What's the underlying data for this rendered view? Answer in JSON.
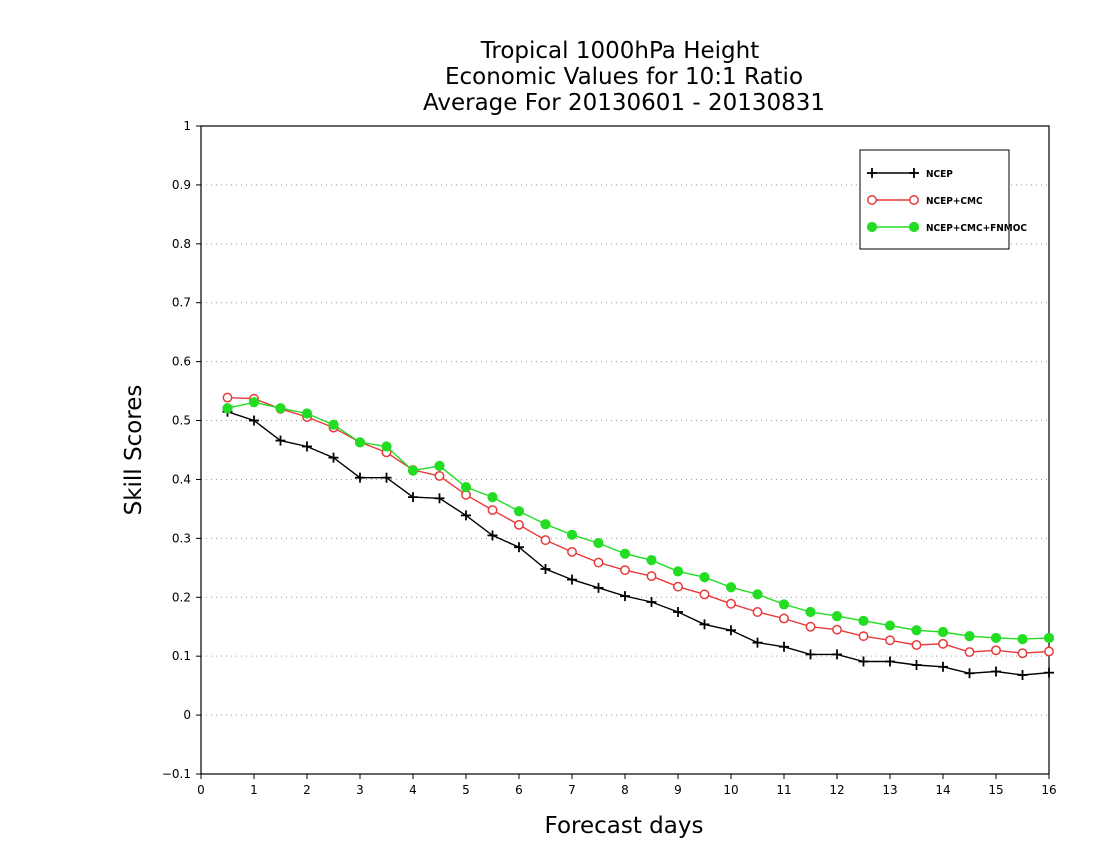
{
  "chart_data": {
    "type": "line",
    "title": [
      "Tropical 1000hPa Height",
      "Economic Values for 10:1 Ratio",
      "Average For 20130601 - 20130831"
    ],
    "xlabel": "Forecast days",
    "ylabel": "Skill Scores",
    "xlim": [
      0,
      16
    ],
    "ylim": [
      -0.1,
      1
    ],
    "xticks": [
      0,
      1,
      2,
      3,
      4,
      5,
      6,
      7,
      8,
      9,
      10,
      11,
      12,
      13,
      14,
      15,
      16
    ],
    "yticks": [
      -0.1,
      0,
      0.1,
      0.2,
      0.3,
      0.4,
      0.5,
      0.6,
      0.7,
      0.8,
      0.9,
      1
    ],
    "ytick_labels": [
      "−0.1",
      "0",
      "0.1",
      "0.2",
      "0.3",
      "0.4",
      "0.5",
      "0.6",
      "0.7",
      "0.8",
      "0.9",
      "1"
    ],
    "grid": "horizontal dotted",
    "legend_position": "top-right",
    "x": [
      0.5,
      1,
      1.5,
      2,
      2.5,
      3,
      3.5,
      4,
      4.5,
      5,
      5.5,
      6,
      6.5,
      7,
      7.5,
      8,
      8.5,
      9,
      9.5,
      10,
      10.5,
      11,
      11.5,
      12,
      12.5,
      13,
      13.5,
      14,
      14.5,
      15,
      15.5,
      16
    ],
    "series": [
      {
        "name": "NCEP",
        "color": "#000000",
        "marker": "plus",
        "values": [
          0.515,
          0.5,
          0.466,
          0.456,
          0.437,
          0.403,
          0.403,
          0.37,
          0.368,
          0.339,
          0.305,
          0.285,
          0.248,
          0.23,
          0.216,
          0.202,
          0.192,
          0.175,
          0.154,
          0.144,
          0.123,
          0.116,
          0.103,
          0.103,
          0.091,
          0.091,
          0.085,
          0.082,
          0.071,
          0.074,
          0.068,
          0.072
        ]
      },
      {
        "name": "NCEP+CMC",
        "color": "#e83a3a",
        "marker": "open-circle",
        "values": [
          0.539,
          0.537,
          0.52,
          0.506,
          0.488,
          0.463,
          0.446,
          0.416,
          0.406,
          0.374,
          0.348,
          0.323,
          0.297,
          0.277,
          0.259,
          0.246,
          0.236,
          0.218,
          0.205,
          0.189,
          0.175,
          0.164,
          0.15,
          0.145,
          0.134,
          0.127,
          0.119,
          0.121,
          0.107,
          0.11,
          0.105,
          0.108
        ]
      },
      {
        "name": "NCEP+CMC+FNMOC",
        "color": "#22dd22",
        "marker": "filled-circle",
        "values": [
          0.521,
          0.531,
          0.521,
          0.512,
          0.493,
          0.463,
          0.456,
          0.415,
          0.423,
          0.387,
          0.37,
          0.346,
          0.324,
          0.306,
          0.292,
          0.274,
          0.263,
          0.244,
          0.234,
          0.217,
          0.205,
          0.188,
          0.175,
          0.168,
          0.16,
          0.152,
          0.144,
          0.141,
          0.134,
          0.131,
          0.129,
          0.131
        ]
      }
    ]
  }
}
